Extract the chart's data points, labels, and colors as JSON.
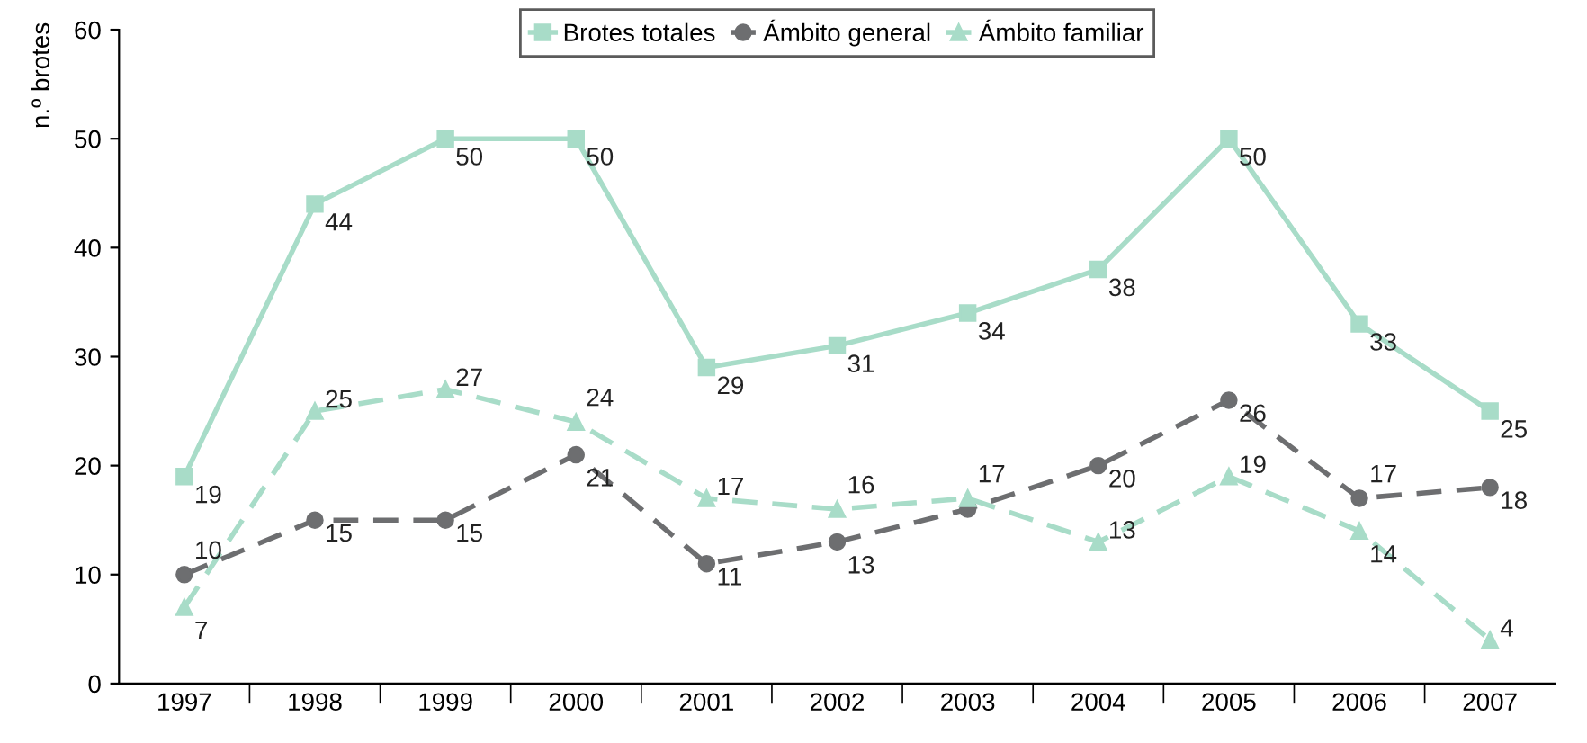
{
  "chart_data": {
    "type": "line",
    "ylabel": "n.º brotes",
    "categories": [
      "1997",
      "1998",
      "1999",
      "2000",
      "2001",
      "2002",
      "2003",
      "2004",
      "2005",
      "2006",
      "2007"
    ],
    "series": [
      {
        "name": "Brotes totales",
        "color": "#a8dcc8",
        "marker": "square",
        "line_style": "solid",
        "values": [
          19,
          44,
          50,
          50,
          29,
          31,
          34,
          38,
          50,
          33,
          25
        ],
        "value_labels": [
          "19",
          "44",
          "50",
          "50",
          "29",
          "31",
          "34",
          "38",
          "50",
          "33",
          "25"
        ]
      },
      {
        "name": "Ámbito general",
        "color": "#6d6e70",
        "marker": "circle",
        "line_style": "dashed",
        "values": [
          10,
          15,
          15,
          21,
          11,
          13,
          16,
          20,
          26,
          17,
          18
        ],
        "value_labels": [
          "10",
          "15",
          "15",
          "21",
          "11",
          "13",
          null,
          "20",
          "26",
          "17",
          "18"
        ]
      },
      {
        "name": "Ámbito familiar",
        "color": "#a8dcc8",
        "marker": "triangle",
        "line_style": "dashed",
        "values": [
          7,
          25,
          27,
          24,
          17,
          16,
          17,
          13,
          19,
          14,
          4
        ],
        "value_labels": [
          "7",
          "25",
          "27",
          "24",
          "17",
          "16",
          "17",
          "13",
          "19",
          "14",
          "4"
        ]
      }
    ],
    "ylim": [
      0,
      60
    ],
    "yticks": [
      0,
      10,
      20,
      30,
      40,
      50,
      60
    ],
    "grid": false,
    "legend": "top"
  }
}
